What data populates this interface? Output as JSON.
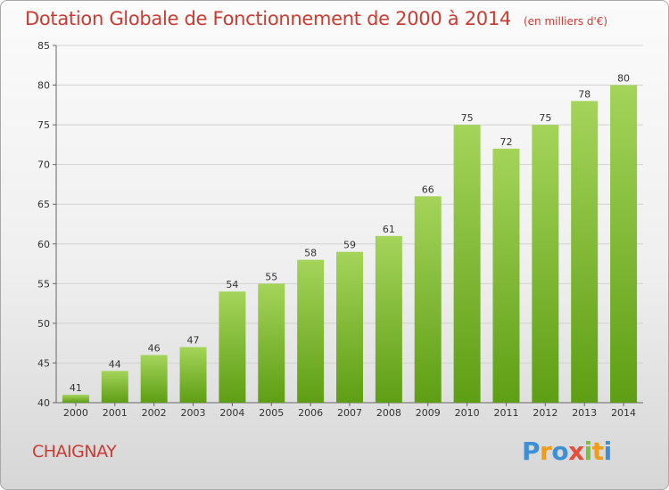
{
  "header": {
    "title": "Dotation Globale de Fonctionnement de 2000 à 2014",
    "subtitle": "(en milliers d'€)"
  },
  "footer": {
    "place": "CHAIGNAY",
    "logo": "Proxiti"
  },
  "colors": {
    "accent": "#c83c32",
    "bar_top": "#a4d45a",
    "bar_bottom": "#5e9e14",
    "logo": [
      "#3d8fd6",
      "#f39c12",
      "#3d8fd6",
      "#e74c3c",
      "#7bc043",
      "#f39c12",
      "#3d8fd6"
    ]
  },
  "chart_data": {
    "type": "bar",
    "title": "Dotation Globale de Fonctionnement de 2000 à 2014",
    "subtitle": "(en milliers d'€)",
    "xlabel": "",
    "ylabel": "",
    "categories": [
      "2000",
      "2001",
      "2002",
      "2003",
      "2004",
      "2005",
      "2006",
      "2007",
      "2008",
      "2009",
      "2010",
      "2011",
      "2012",
      "2013",
      "2014"
    ],
    "values": [
      41,
      44,
      46,
      47,
      54,
      55,
      58,
      59,
      61,
      66,
      75,
      72,
      75,
      78,
      80
    ],
    "ylim": [
      40,
      85
    ],
    "yticks": [
      40,
      45,
      50,
      55,
      60,
      65,
      70,
      75,
      80,
      85
    ],
    "grid": true,
    "legend": "none"
  }
}
